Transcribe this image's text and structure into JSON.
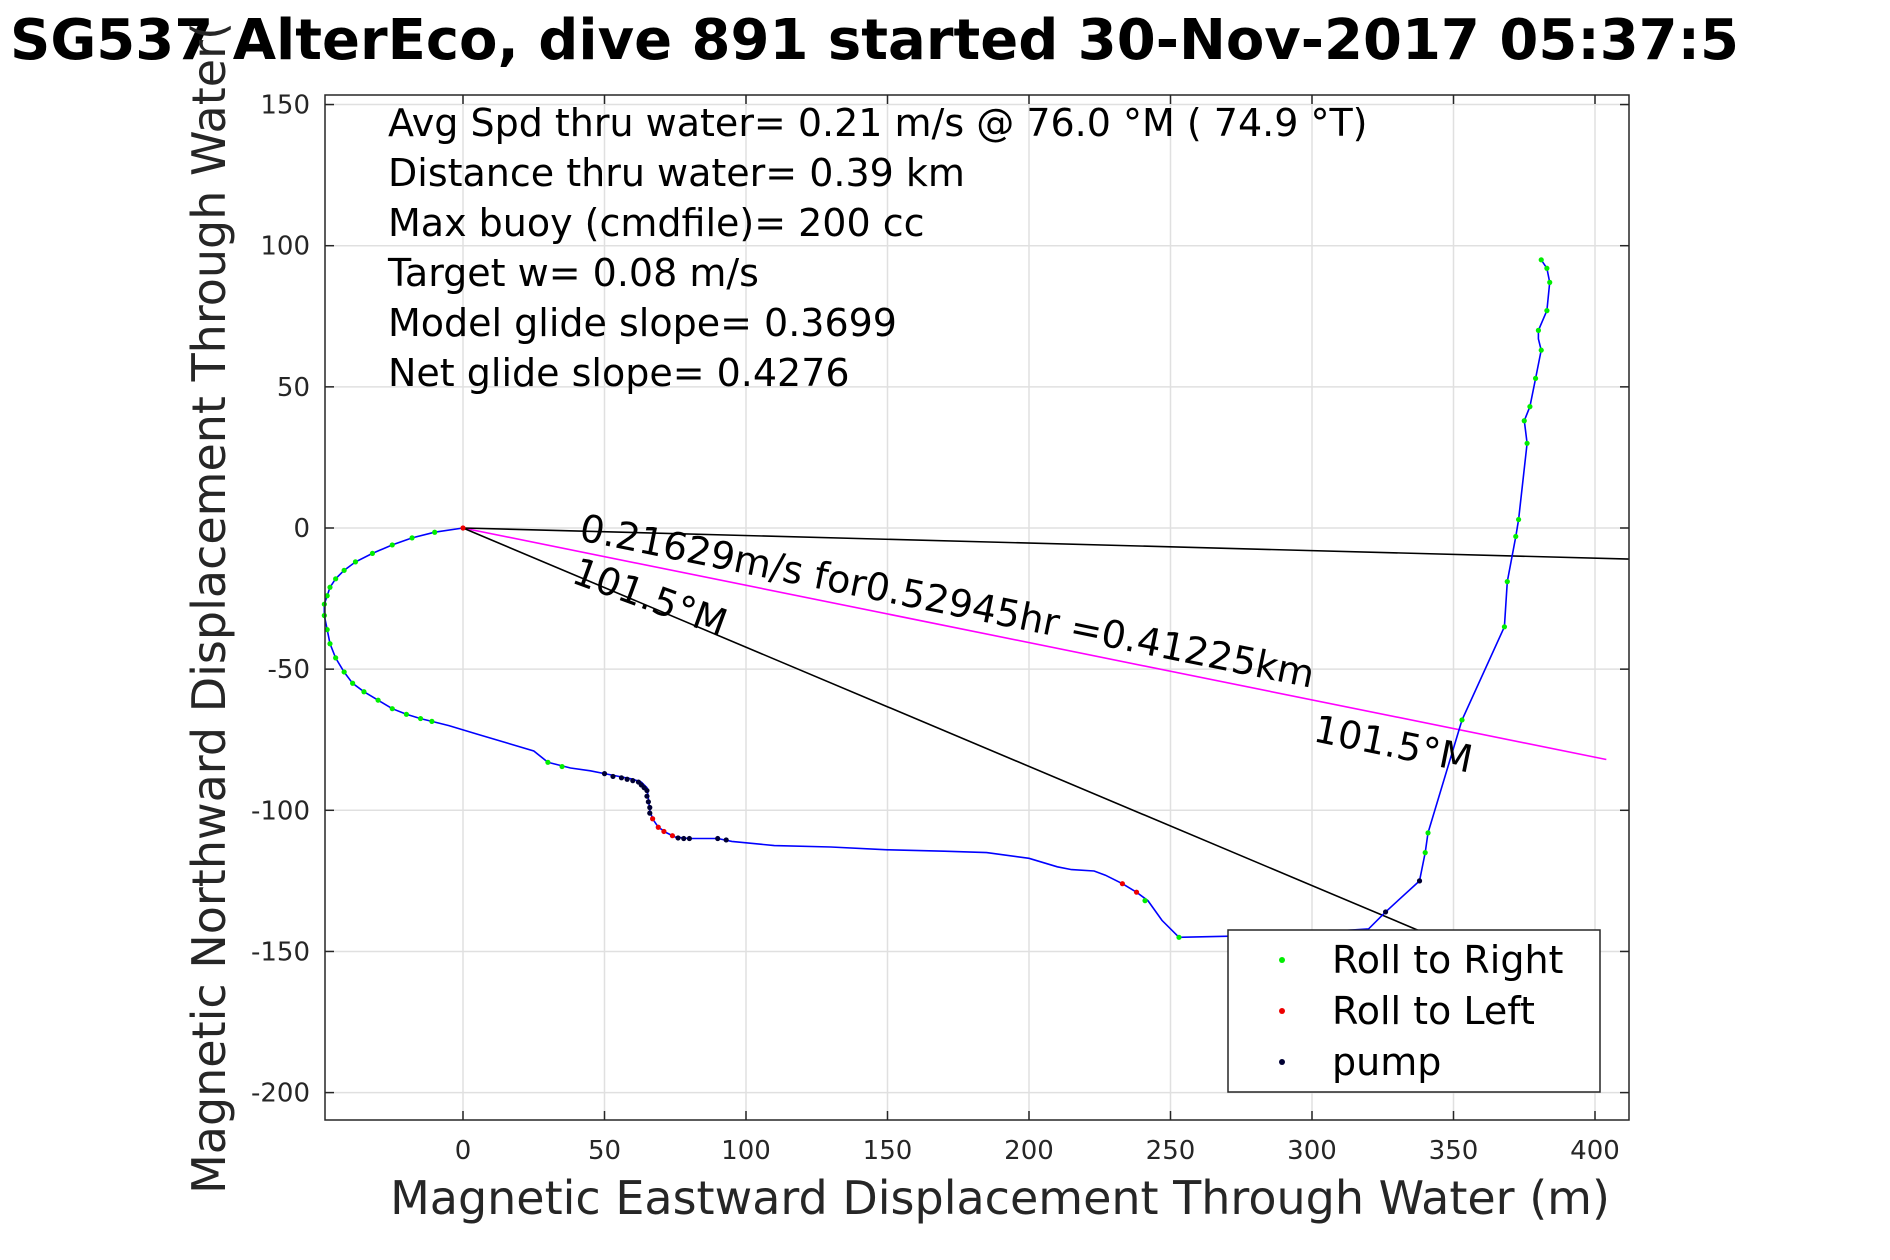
{
  "chart_data": {
    "type": "line",
    "title": "SG537 AlterEco, dive 891 started 30-Nov-2017 05:37:5",
    "xlabel": "Magnetic Eastward Displacement Through Water (m)",
    "ylabel": "Magnetic Northward Displacement Through Water(",
    "xlim": [
      -49,
      412
    ],
    "ylim": [
      -210,
      154
    ],
    "x_ticks": [
      0,
      50,
      100,
      150,
      200,
      250,
      300,
      350,
      400
    ],
    "y_ticks": [
      150,
      100,
      50,
      0,
      -50,
      -100,
      -150,
      -200
    ],
    "x_tick_labels": [
      "0",
      "50",
      "100",
      "150",
      "200",
      "250",
      "300",
      "350",
      "400"
    ],
    "y_tick_labels": [
      "150",
      "100",
      "50",
      "0",
      "-50",
      "-100",
      "-150",
      "-200"
    ],
    "grid": true,
    "legend_position": "bottom-right",
    "info_lines": [
      "Avg Spd thru water=  0.21 m/s @  76.0 °M ( 74.9 °T)",
      "Distance thru water=  0.39 km",
      "Max buoy (cmdfile)= 200 cc",
      "Target w= 0.08 m/s",
      "Model glide slope= 0.3699",
      "Net glide slope= 0.4276"
    ],
    "annotations": {
      "speed": "0.21629m/s for0.52945hr =0.41225km",
      "heading_magenta": "101.5°M",
      "heading_black": "101.5°M"
    },
    "colors": {
      "track": "#0000ff",
      "roll_right": "#00ee00",
      "roll_left": "#ee0000",
      "pump": "#000033",
      "course_line": "#ff00ff",
      "reference_line": "#000000",
      "grid": "#e0e0e0"
    },
    "track": [
      [
        0,
        0
      ],
      [
        -10,
        -1.5
      ],
      [
        -18,
        -3.5
      ],
      [
        -25,
        -6
      ],
      [
        -32,
        -9
      ],
      [
        -38,
        -12
      ],
      [
        -42,
        -15
      ],
      [
        -45,
        -18
      ],
      [
        -47,
        -21
      ],
      [
        -48,
        -24
      ],
      [
        -49,
        -27
      ],
      [
        -49,
        -31
      ],
      [
        -48,
        -36
      ],
      [
        -47,
        -41
      ],
      [
        -45,
        -46
      ],
      [
        -42,
        -51
      ],
      [
        -39,
        -55
      ],
      [
        -35,
        -58
      ],
      [
        -30,
        -61
      ],
      [
        -25,
        -64
      ],
      [
        -20,
        -66
      ],
      [
        -15,
        -67.5
      ],
      [
        -11,
        -68.5
      ],
      [
        -5,
        -70
      ],
      [
        5,
        -73
      ],
      [
        15,
        -76
      ],
      [
        25,
        -79
      ],
      [
        30,
        -83
      ],
      [
        38,
        -85
      ],
      [
        45,
        -86
      ],
      [
        50,
        -87
      ],
      [
        55,
        -88
      ],
      [
        60,
        -89
      ],
      [
        63,
        -90
      ],
      [
        65,
        -92
      ],
      [
        65.5,
        -96
      ],
      [
        66,
        -100
      ],
      [
        67,
        -103
      ],
      [
        69,
        -106
      ],
      [
        72,
        -108
      ],
      [
        75,
        -109.5
      ],
      [
        80,
        -110
      ],
      [
        90,
        -110
      ],
      [
        95,
        -111
      ],
      [
        110,
        -112.5
      ],
      [
        130,
        -113
      ],
      [
        150,
        -114
      ],
      [
        170,
        -114.5
      ],
      [
        185,
        -115
      ],
      [
        200,
        -117
      ],
      [
        210,
        -120
      ],
      [
        215,
        -121
      ],
      [
        223,
        -121.5
      ],
      [
        227,
        -123
      ],
      [
        233,
        -126
      ],
      [
        238,
        -129
      ],
      [
        242,
        -132
      ],
      [
        247,
        -139
      ],
      [
        253,
        -145
      ],
      [
        275,
        -144.5
      ],
      [
        292,
        -144
      ],
      [
        305,
        -143
      ],
      [
        320,
        -142
      ],
      [
        326,
        -136
      ],
      [
        338,
        -125
      ],
      [
        340,
        -115
      ],
      [
        341,
        -108
      ],
      [
        353,
        -68
      ],
      [
        368,
        -35
      ],
      [
        369,
        -19
      ],
      [
        372,
        -3
      ],
      [
        373,
        3
      ],
      [
        376,
        30
      ],
      [
        375,
        38
      ],
      [
        377,
        43
      ],
      [
        379,
        53
      ],
      [
        381,
        63
      ],
      [
        380,
        67
      ],
      [
        380,
        70
      ],
      [
        383,
        77
      ],
      [
        384,
        87
      ],
      [
        383,
        92
      ],
      [
        381,
        95
      ]
    ],
    "legend": [
      {
        "label": "Roll to Right",
        "color": "#00ee00"
      },
      {
        "label": "Roll to Left",
        "color": "#ee0000"
      },
      {
        "label": "pump",
        "color": "#000033"
      }
    ],
    "series": [
      {
        "name": "Roll to Right",
        "points": [
          [
            -10,
            -1.5
          ],
          [
            -18,
            -3.5
          ],
          [
            -25,
            -6
          ],
          [
            -32,
            -9
          ],
          [
            -38,
            -12
          ],
          [
            -42,
            -15
          ],
          [
            -45,
            -18
          ],
          [
            -47,
            -21
          ],
          [
            -48,
            -24
          ],
          [
            -49,
            -27
          ],
          [
            -49,
            -31
          ],
          [
            -48,
            -36
          ],
          [
            -47,
            -41
          ],
          [
            -45,
            -46
          ],
          [
            -42,
            -51
          ],
          [
            -39,
            -55
          ],
          [
            -35,
            -58
          ],
          [
            -30,
            -61
          ],
          [
            -25,
            -64
          ],
          [
            -20,
            -66
          ],
          [
            -15,
            -67.5
          ],
          [
            -11,
            -68.5
          ],
          [
            30,
            -83
          ],
          [
            35,
            -84.5
          ],
          [
            241,
            -132
          ],
          [
            253,
            -145
          ],
          [
            340,
            -115
          ],
          [
            341,
            -108
          ],
          [
            353,
            -68
          ],
          [
            368,
            -35
          ],
          [
            369,
            -19
          ],
          [
            372,
            -3
          ],
          [
            373,
            3
          ],
          [
            376,
            30
          ],
          [
            375,
            38
          ],
          [
            377,
            43
          ],
          [
            379,
            53
          ],
          [
            381,
            63
          ],
          [
            380,
            70
          ],
          [
            383,
            77
          ],
          [
            384,
            87
          ],
          [
            383,
            92
          ],
          [
            381,
            95
          ]
        ]
      },
      {
        "name": "Roll to Left",
        "points": [
          [
            0,
            0
          ],
          [
            67,
            -103
          ],
          [
            69,
            -106
          ],
          [
            71,
            -107.5
          ],
          [
            74,
            -109
          ],
          [
            233,
            -126
          ],
          [
            238,
            -129
          ]
        ]
      },
      {
        "name": "pump",
        "points": [
          [
            50,
            -87
          ],
          [
            53,
            -88
          ],
          [
            56,
            -88.5
          ],
          [
            58,
            -89
          ],
          [
            60,
            -89.5
          ],
          [
            62,
            -90
          ],
          [
            63,
            -91
          ],
          [
            64,
            -92
          ],
          [
            65,
            -93
          ],
          [
            65,
            -95
          ],
          [
            65.5,
            -97
          ],
          [
            66,
            -99
          ],
          [
            66,
            -101
          ],
          [
            76,
            -109.8
          ],
          [
            78,
            -110
          ],
          [
            80,
            -110
          ],
          [
            90,
            -110
          ],
          [
            93,
            -110.5
          ],
          [
            326,
            -136
          ],
          [
            338,
            -125
          ]
        ]
      }
    ],
    "lines": [
      {
        "name": "course",
        "color": "#ff00ff",
        "from": [
          0,
          0
        ],
        "to": [
          404,
          -82
        ]
      },
      {
        "name": "reference_long",
        "color": "#000000",
        "from": [
          0,
          0
        ],
        "to": [
          412,
          -11
        ]
      },
      {
        "name": "reference_diag",
        "color": "#000000",
        "from": [
          0,
          0
        ],
        "to": [
          360,
          -152
        ]
      }
    ]
  }
}
